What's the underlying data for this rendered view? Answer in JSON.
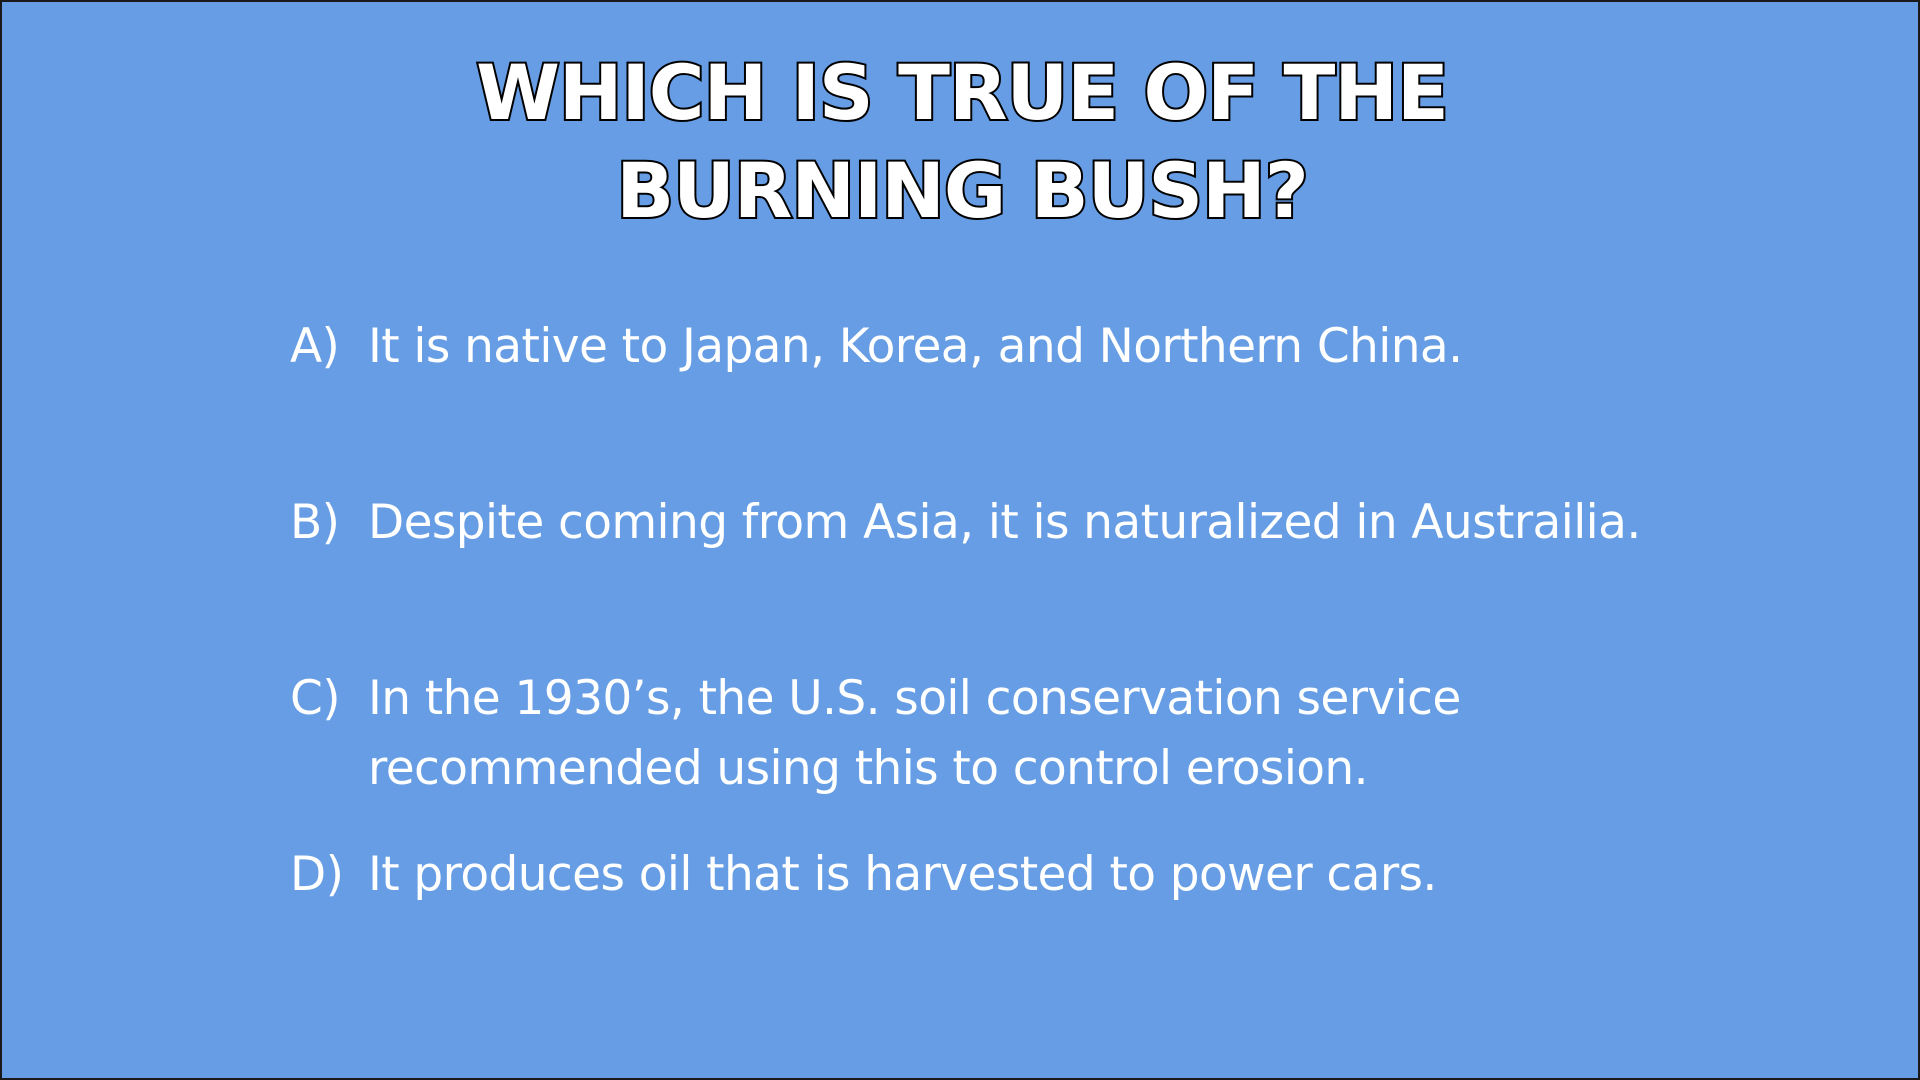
{
  "slide": {
    "background_color": "#669de4",
    "title_lines": [
      "WHICH IS TRUE OF THE",
      "BURNING BUSH?"
    ],
    "answers": [
      {
        "letter": "A)",
        "text": "It is native to Japan, Korea, and Northern China."
      },
      {
        "letter": "B)",
        "text": "Despite coming from Asia, it is naturalized in Austrailia."
      },
      {
        "letter": "C)",
        "text": "In the 1930’s, the U.S. soil conservation service recommended using this to control erosion."
      },
      {
        "letter": "D)",
        "text": "It produces oil that is harvested to power cars."
      }
    ]
  }
}
